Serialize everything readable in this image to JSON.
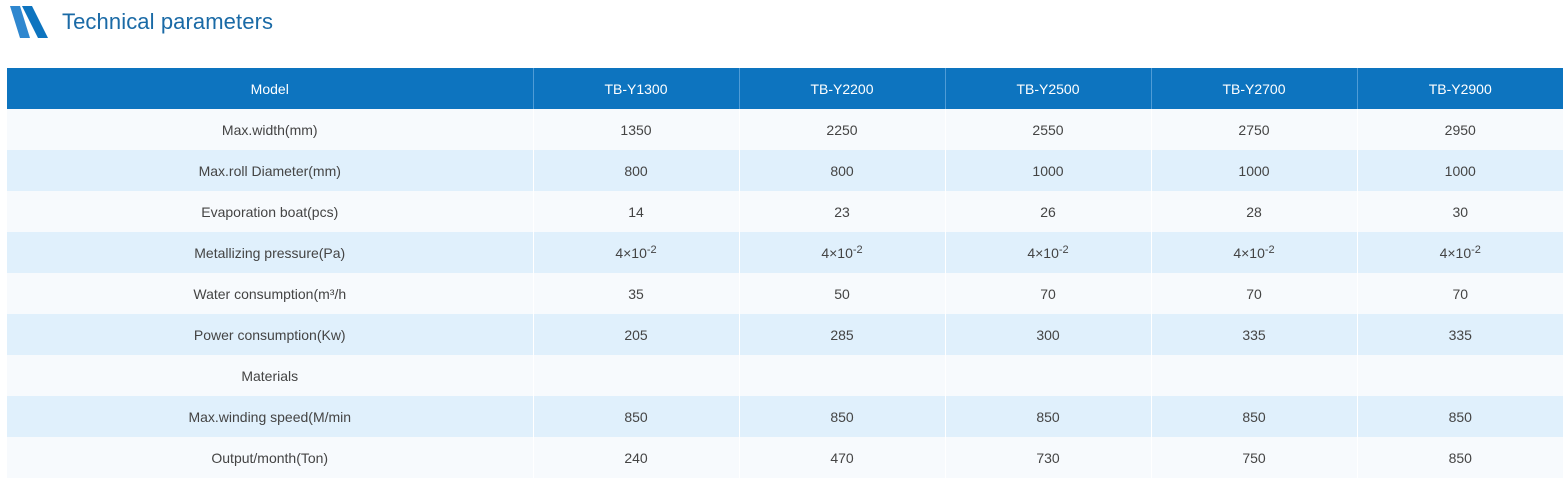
{
  "section": {
    "title": "Technical parameters",
    "icon": "slanted-stripes-icon",
    "accent_color": "#0d74bf"
  },
  "table": {
    "headers": [
      "Model",
      "TB-Y1300",
      "TB-Y2200",
      "TB-Y2500",
      "TB-Y2700",
      "TB-Y2900"
    ],
    "rows": [
      {
        "label": "Max.width(mm)",
        "values": [
          "1350",
          "2250",
          "2550",
          "2750",
          "2950"
        ]
      },
      {
        "label": "Max.roll Diameter(mm)",
        "values": [
          "800",
          "800",
          "1000",
          "1000",
          "1000"
        ]
      },
      {
        "label": "Evaporation boat(pcs)",
        "values": [
          "14",
          "23",
          "26",
          "28",
          "30"
        ]
      },
      {
        "label": "Metallizing pressure(Pa)",
        "values": [
          {
            "base": "4×10",
            "exp": "-2"
          },
          {
            "base": "4×10",
            "exp": "-2"
          },
          {
            "base": "4×10",
            "exp": "-2"
          },
          {
            "base": "4×10",
            "exp": "-2"
          },
          {
            "base": "4×10",
            "exp": "-2"
          }
        ]
      },
      {
        "label": "Water consumption(m³/h",
        "values": [
          "35",
          "50",
          "70",
          "70",
          "70"
        ]
      },
      {
        "label": "Power consumption(Kw)",
        "values": [
          "205",
          "285",
          "300",
          "335",
          "335"
        ]
      },
      {
        "label": "Materials",
        "values": [
          "",
          "",
          "",
          "",
          ""
        ]
      },
      {
        "label": "Max.winding speed(M/min",
        "values": [
          "850",
          "850",
          "850",
          "850",
          "850"
        ]
      },
      {
        "label": "Output/month(Ton)",
        "values": [
          "240",
          "470",
          "730",
          "750",
          "850"
        ]
      }
    ]
  }
}
